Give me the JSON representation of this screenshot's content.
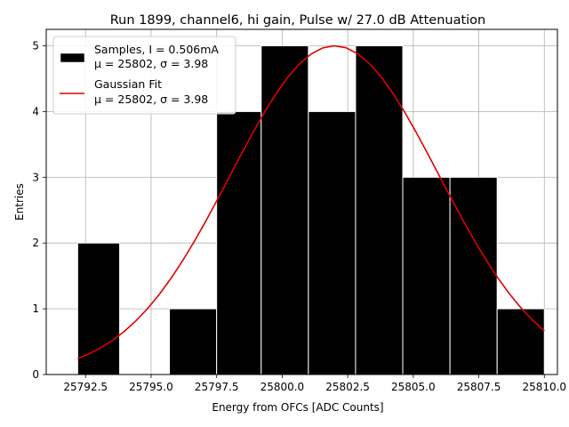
{
  "chart_data": {
    "type": "bar",
    "title": "Run 1899, channel6, hi gain, Pulse w/ 27.0 dB Attenuation",
    "xlabel": "Energy from OFCs [ADC Counts]",
    "ylabel": "Entries",
    "xlim": [
      25791.0,
      25810.5
    ],
    "ylim": [
      0,
      5.25
    ],
    "xticks": [
      25792.5,
      25795.0,
      25797.5,
      25800.0,
      25802.5,
      25805.0,
      25807.5,
      25810.0
    ],
    "xtick_labels": [
      "25792.5",
      "25795.0",
      "25797.5",
      "25800.0",
      "25802.5",
      "25805.0",
      "25807.5",
      "25810.0"
    ],
    "yticks": [
      0,
      1,
      2,
      3,
      4,
      5
    ],
    "ytick_labels": [
      "0",
      "1",
      "2",
      "3",
      "4",
      "5"
    ],
    "grid": true,
    "legend_position": "top-left",
    "histogram": {
      "name": "Samples, I = 0.506mA",
      "stats": "μ = 25802, σ = 3.98",
      "color": "#000000",
      "edgecolor": "#ffffff",
      "bin_edges": [
        25792.2,
        25793.8,
        25795.7,
        25797.5,
        25799.2,
        25801.0,
        25802.8,
        25804.6,
        25806.4,
        25808.2,
        25810.0
      ],
      "values": [
        2,
        0,
        1,
        4,
        5,
        4,
        5,
        3,
        3,
        1
      ]
    },
    "fit": {
      "name": "Gaussian Fit",
      "stats": "μ = 25802, σ = 3.98",
      "color": "#e00000",
      "mu": 25802,
      "sigma": 3.98,
      "amplitude": 5.0,
      "x_range": [
        25792.2,
        25810.0
      ]
    }
  }
}
